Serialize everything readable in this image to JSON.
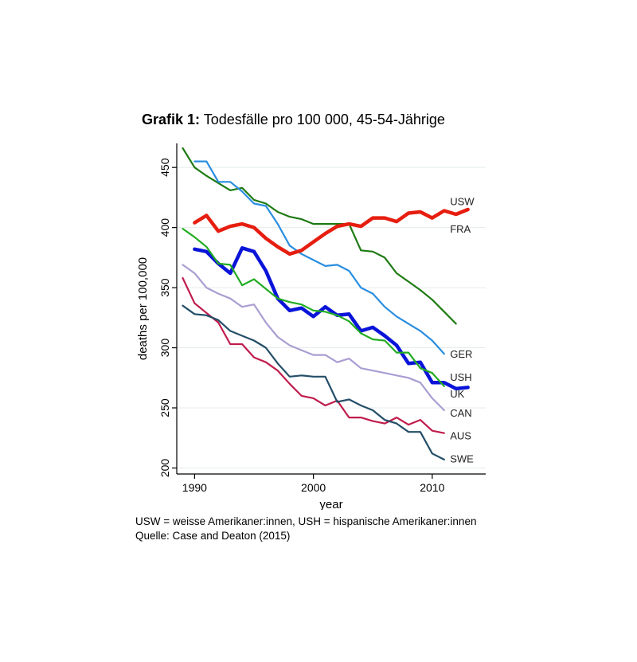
{
  "title": {
    "bold": "Grafik 1:",
    "text": "Todesfälle pro 100 000, 45-54-Jährige"
  },
  "notes": [
    "USW = weisse Amerikaner:innen, USH = hispanische Amerikaner:innen",
    "Quelle: Case and Deaton (2015)"
  ],
  "chart_data": {
    "type": "line",
    "xlabel": "year",
    "ylabel": "deaths per 100,000",
    "xlim": [
      1988.5,
      2014.5
    ],
    "ylim": [
      195,
      470
    ],
    "xticks": [
      1990,
      2000,
      2010
    ],
    "yticks": [
      200,
      250,
      300,
      350,
      400,
      450
    ],
    "grid": "horizontal",
    "legend": "direct labels at line ends",
    "series": [
      {
        "name": "FRA",
        "color": "#1f7a14",
        "width": 2.2,
        "x": [
          1989,
          1990,
          1991,
          1992,
          1993,
          1994,
          1995,
          1996,
          1997,
          1998,
          1999,
          2000,
          2001,
          2002,
          2003,
          2004,
          2005,
          2006,
          2007,
          2008,
          2009,
          2010,
          2011,
          2012
        ],
        "y": [
          466,
          450,
          443,
          437,
          431,
          433,
          423,
          420,
          413,
          409,
          407,
          403,
          403,
          403,
          403,
          381,
          380,
          375,
          362,
          355,
          348,
          340,
          330,
          320
        ],
        "label_y": 399
      },
      {
        "name": "GER",
        "color": "#2a8ee0",
        "width": 2.2,
        "x": [
          1990,
          1991,
          1992,
          1993,
          1994,
          1995,
          1996,
          1997,
          1998,
          1999,
          2000,
          2001,
          2002,
          2003,
          2004,
          2005,
          2006,
          2007,
          2008,
          2009,
          2010,
          2011
        ],
        "y": [
          455,
          455,
          438,
          438,
          430,
          420,
          418,
          403,
          385,
          378,
          373,
          368,
          369,
          364,
          350,
          345,
          334,
          326,
          320,
          314,
          306,
          295
        ],
        "label_y": 295
      },
      {
        "name": "USW",
        "color": "#e61e10",
        "width": 4.5,
        "x": [
          1990,
          1991,
          1992,
          1993,
          1994,
          1995,
          1996,
          1997,
          1998,
          1999,
          2000,
          2001,
          2002,
          2003,
          2004,
          2005,
          2006,
          2007,
          2008,
          2009,
          2010,
          2011,
          2012,
          2013
        ],
        "y": [
          404,
          410,
          397,
          401,
          403,
          400,
          391,
          384,
          378,
          381,
          388,
          395,
          401,
          403,
          401,
          408,
          408,
          405,
          412,
          413,
          408,
          414,
          411,
          415
        ],
        "label_y": 422
      },
      {
        "name": "USH",
        "color": "#0a14d8",
        "width": 4.5,
        "x": [
          1990,
          1991,
          1992,
          1993,
          1994,
          1995,
          1996,
          1997,
          1998,
          1999,
          2000,
          2001,
          2002,
          2003,
          2004,
          2005,
          2006,
          2007,
          2008,
          2009,
          2010,
          2011,
          2012,
          2013
        ],
        "y": [
          382,
          380,
          370,
          362,
          383,
          380,
          364,
          341,
          331,
          333,
          326,
          334,
          327,
          328,
          314,
          317,
          310,
          302,
          287,
          288,
          271,
          271,
          266,
          267
        ],
        "label_y": 276
      },
      {
        "name": "UK",
        "color": "#23ac23",
        "width": 2.2,
        "x": [
          1989,
          1990,
          1991,
          1992,
          1993,
          1994,
          1995,
          1996,
          1997,
          1998,
          1999,
          2000,
          2001,
          2002,
          2003,
          2004,
          2005,
          2006,
          2007,
          2008,
          2009,
          2010,
          2011
        ],
        "y": [
          399,
          392,
          384,
          370,
          369,
          352,
          357,
          349,
          341,
          338,
          336,
          331,
          330,
          327,
          322,
          312,
          307,
          306,
          296,
          296,
          283,
          279,
          268
        ],
        "label_y": 262
      },
      {
        "name": "CAN",
        "color": "#aa9ed2",
        "width": 2.2,
        "x": [
          1989,
          1990,
          1991,
          1992,
          1993,
          1994,
          1995,
          1996,
          1997,
          1998,
          1999,
          2000,
          2001,
          2002,
          2003,
          2004,
          2005,
          2006,
          2007,
          2008,
          2009,
          2010,
          2011
        ],
        "y": [
          369,
          362,
          350,
          345,
          341,
          334,
          336,
          321,
          309,
          302,
          298,
          294,
          294,
          288,
          291,
          283,
          281,
          279,
          277,
          275,
          271,
          258,
          248
        ],
        "label_y": 246
      },
      {
        "name": "AUS",
        "color": "#c01c4c",
        "width": 2.2,
        "x": [
          1989,
          1990,
          1991,
          1992,
          1993,
          1994,
          1995,
          1996,
          1997,
          1998,
          1999,
          2000,
          2001,
          2002,
          2003,
          2004,
          2005,
          2006,
          2007,
          2008,
          2009,
          2010,
          2011
        ],
        "y": [
          358,
          337,
          329,
          321,
          303,
          303,
          292,
          288,
          281,
          270,
          260,
          258,
          252,
          256,
          242,
          242,
          239,
          237,
          242,
          236,
          240,
          231,
          229
        ],
        "label_y": 227
      },
      {
        "name": "SWE",
        "color": "#244e68",
        "width": 2.2,
        "x": [
          1989,
          1990,
          1991,
          1992,
          1993,
          1994,
          1995,
          1996,
          1997,
          1998,
          1999,
          2000,
          2001,
          2002,
          2003,
          2004,
          2005,
          2006,
          2007,
          2008,
          2009,
          2010,
          2011
        ],
        "y": [
          335,
          328,
          327,
          323,
          314,
          310,
          306,
          300,
          287,
          276,
          277,
          276,
          276,
          255,
          257,
          252,
          248,
          240,
          237,
          230,
          230,
          212,
          207
        ],
        "label_y": 208
      }
    ]
  }
}
